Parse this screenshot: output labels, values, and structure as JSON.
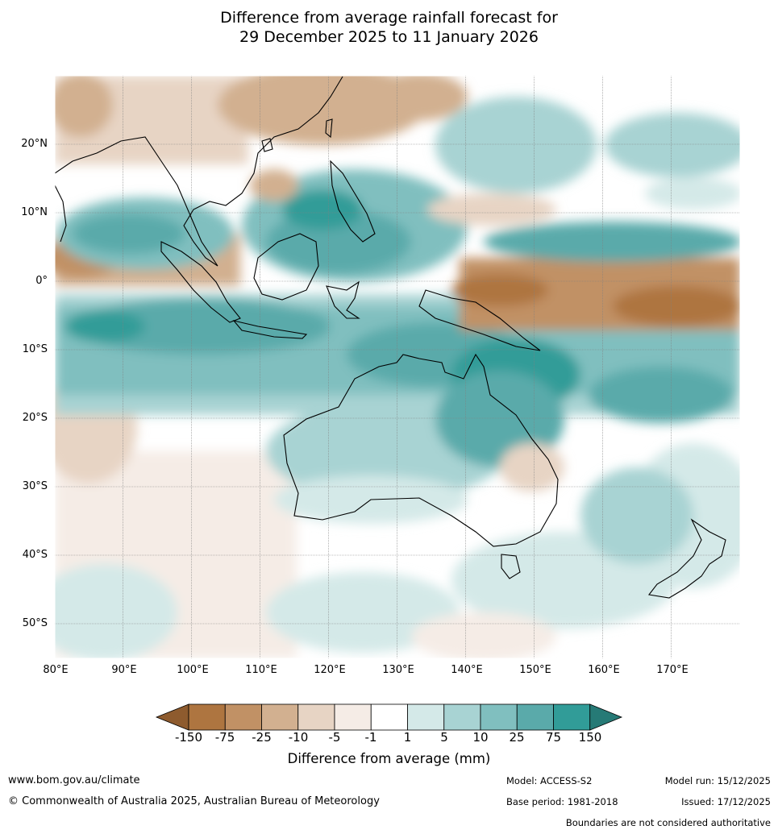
{
  "title": {
    "line1": "Difference from average rainfall forecast for",
    "line2": "29 December 2025 to 11 January 2026"
  },
  "map": {
    "lat_labels": [
      "20°N",
      "10°N",
      "0°",
      "10°S",
      "20°S",
      "30°S",
      "40°S",
      "50°S"
    ],
    "lat_values": [
      20,
      10,
      0,
      -10,
      -20,
      -30,
      -40,
      -50
    ],
    "lon_labels": [
      "80°E",
      "90°E",
      "100°E",
      "110°E",
      "120°E",
      "130°E",
      "140°E",
      "150°E",
      "160°E",
      "170°E"
    ],
    "lon_values": [
      80,
      90,
      100,
      110,
      120,
      130,
      140,
      150,
      160,
      170
    ],
    "extent": {
      "lon_min": 80,
      "lon_max": 180,
      "lat_min": -55,
      "lat_max": 30
    }
  },
  "colorbar": {
    "title": "Difference from average (mm)",
    "ticks": [
      "-150",
      "-75",
      "-25",
      "-10",
      "-5",
      "-1",
      "1",
      "5",
      "10",
      "25",
      "75",
      "150"
    ],
    "colors": [
      "#8e5b2e",
      "#ae7540",
      "#c19165",
      "#d2b090",
      "#e7d4c4",
      "#f5ece6",
      "#ffffff",
      "#d4e9e8",
      "#a8d3d3",
      "#80bfbf",
      "#5aaaaa",
      "#319c98",
      "#267a76"
    ]
  },
  "footer": {
    "website": "www.bom.gov.au/climate",
    "copyright": "© Commonwealth of Australia 2025, Australian Bureau of Meteorology",
    "model": "Model: ACCESS-S2",
    "base_period": "Base period: 1981-2018",
    "model_run": "Model run: 15/12/2025",
    "issued": "Issued: 17/12/2025",
    "disclaimer": "Boundaries are not considered authoritative"
  }
}
